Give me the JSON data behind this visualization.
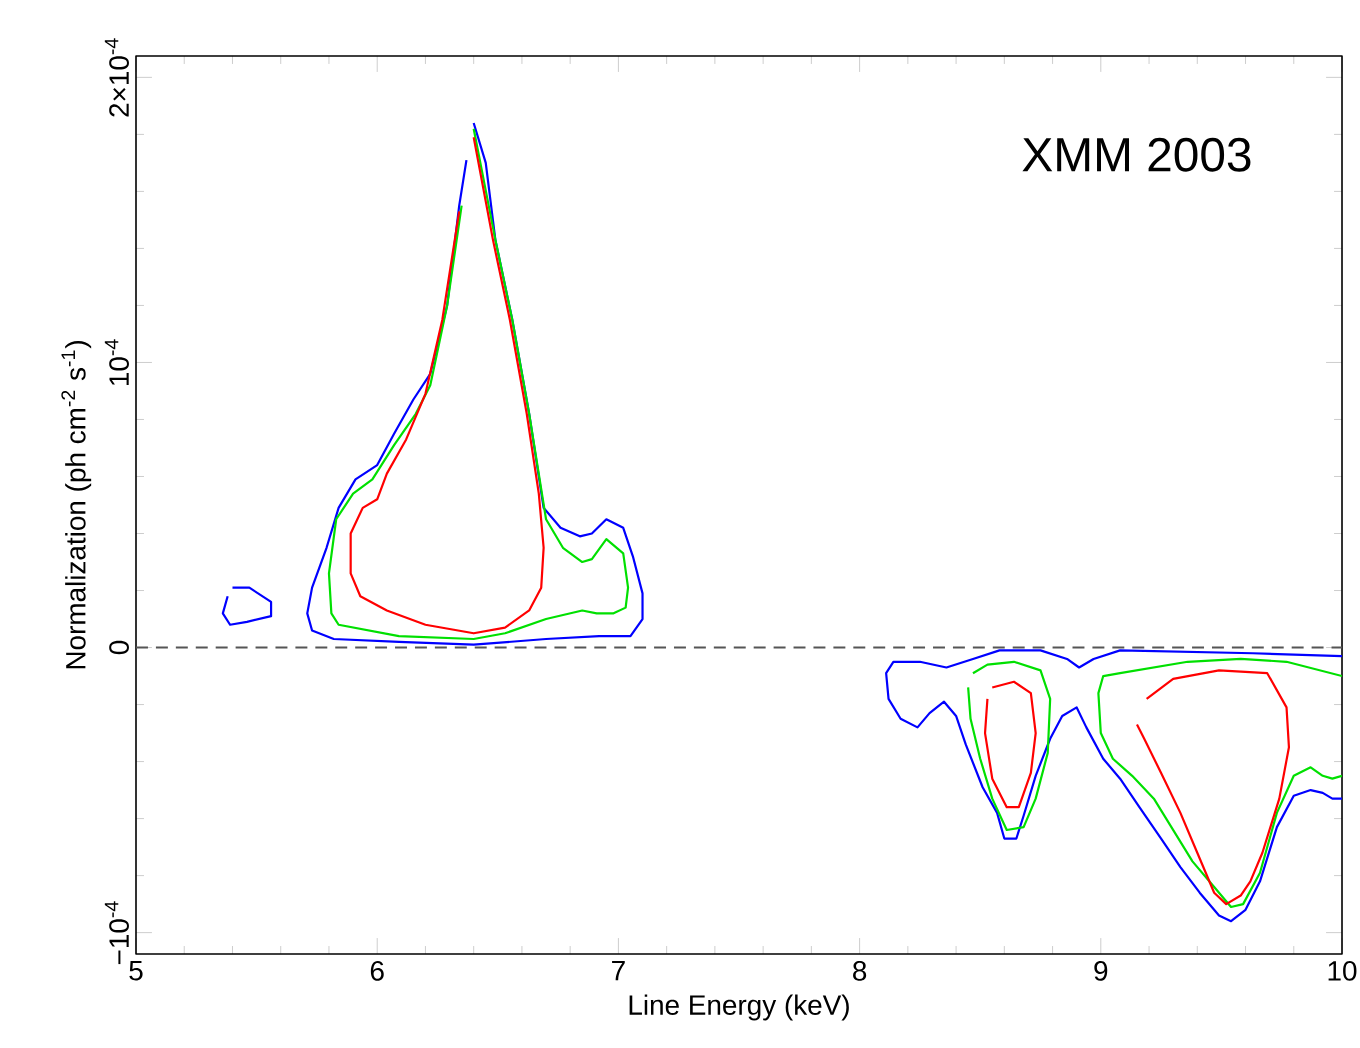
{
  "chart_data": {
    "type": "line",
    "xlabel": "Line Energy (keV)",
    "ylabel": "Normalization (ph cm$^{-2}$ s$^{-1}$)",
    "annotations": [
      "XMM 2003"
    ],
    "xlim": [
      5,
      10
    ],
    "xticks": [
      5,
      6,
      7,
      8,
      9,
      10
    ],
    "ylim": [
      -0.0001075,
      0.0002075
    ],
    "yticks": [
      {
        "value": -0.0001,
        "label": "−10$^{-4}$"
      },
      0,
      {
        "value": 0.0001,
        "label": "10$^{-4}$"
      },
      {
        "value": 0.0002,
        "label": "2×10$^{-4}$"
      }
    ],
    "marker": "none",
    "line_style": "solid",
    "ref_lines": [
      {
        "axis": "y",
        "value": 0,
        "color": "#555555",
        "line_style": "dashed"
      }
    ],
    "series": [
      {
        "color": "#0000ff",
        "x": [
          6.37,
          6.34,
          6.29,
          6.22,
          6.15,
          6.07,
          6.0,
          5.91,
          5.84,
          5.79,
          5.73,
          5.71,
          5.73,
          5.82,
          6.09,
          6.4,
          6.7,
          6.92,
          7.05,
          7.1,
          7.1,
          7.06,
          7.02,
          6.95,
          6.89,
          6.84,
          6.76,
          6.69,
          6.63,
          6.56,
          6.49,
          6.45,
          6.4
        ],
        "values": [
          0.000171,
          0.000155,
          0.00012,
          9.6e-05,
          8.7e-05,
          7.5e-05,
          6.4e-05,
          5.9e-05,
          4.9e-05,
          3.5e-05,
          2.1e-05,
          1.2e-05,
          6e-06,
          3e-06,
          2e-06,
          1e-06,
          3e-06,
          4e-06,
          4e-06,
          1e-05,
          1.9e-05,
          3.2e-05,
          4.2e-05,
          4.5e-05,
          4e-05,
          3.9e-05,
          4.2e-05,
          4.9e-05,
          8.2e-05,
          0.000115,
          0.000143,
          0.00017,
          0.000184
        ]
      },
      {
        "color": "#00e000",
        "x": [
          6.35,
          6.29,
          6.22,
          6.16,
          6.07,
          5.98,
          5.9,
          5.83,
          5.8,
          5.81,
          5.84,
          6.09,
          6.4,
          6.53,
          6.7,
          6.85,
          6.91,
          6.98,
          7.03,
          7.04,
          7.02,
          6.95,
          6.89,
          6.85,
          6.77,
          6.7,
          6.63,
          6.56,
          6.49,
          6.4
        ],
        "values": [
          0.000155,
          0.00012,
          9.2e-05,
          8.2e-05,
          7.1e-05,
          5.9e-05,
          5.4e-05,
          4.5e-05,
          2.6e-05,
          1.2e-05,
          8e-06,
          4e-06,
          3e-06,
          5e-06,
          1e-05,
          1.3e-05,
          1.2e-05,
          1.2e-05,
          1.4e-05,
          2.1e-05,
          3.3e-05,
          3.8e-05,
          3.1e-05,
          3e-05,
          3.5e-05,
          4.5e-05,
          8.2e-05,
          0.000115,
          0.000143,
          0.000182
        ]
      },
      {
        "color": "#ff0000",
        "x": [
          6.34,
          6.27,
          6.2,
          6.12,
          6.04,
          6.0,
          5.94,
          5.89,
          5.89,
          5.93,
          6.04,
          6.2,
          6.4,
          6.53,
          6.63,
          6.68,
          6.69,
          6.67,
          6.62,
          6.55,
          6.48,
          6.4
        ],
        "values": [
          0.000153,
          0.000115,
          8.9e-05,
          7.3e-05,
          6.1e-05,
          5.2e-05,
          4.9e-05,
          4e-05,
          2.6e-05,
          1.8e-05,
          1.3e-05,
          8e-06,
          5e-06,
          7e-06,
          1.3e-05,
          2.1e-05,
          3.5e-05,
          5.4e-05,
          8.2e-05,
          0.000115,
          0.000143,
          0.000179
        ]
      },
      {
        "color": "#0000ff",
        "x": [
          5.38,
          5.36,
          5.39,
          5.46,
          5.56,
          5.56,
          5.47,
          5.4
        ],
        "values": [
          1.8e-05,
          1.2e-05,
          8e-06,
          9e-06,
          1.1e-05,
          1.6e-05,
          2.1e-05,
          2.1e-05
        ]
      },
      {
        "color": "#0000ff",
        "x": [
          10.0,
          9.63,
          9.08,
          8.97,
          8.91,
          8.86,
          8.75,
          8.58,
          8.47,
          8.36,
          8.25,
          8.14,
          8.11,
          8.12,
          8.17,
          8.24,
          8.29,
          8.35,
          8.4,
          8.44,
          8.51,
          8.57,
          8.6,
          8.65,
          8.68,
          8.73,
          8.79,
          8.84,
          8.9,
          8.94,
          9.01,
          9.08,
          9.16,
          9.25,
          9.33,
          9.41,
          9.49,
          9.54,
          9.6,
          9.66,
          9.73,
          9.8,
          9.87,
          9.92,
          9.96,
          10.0
        ],
        "values": [
          -3e-06,
          -2e-06,
          -1e-06,
          -4e-06,
          -7e-06,
          -4e-06,
          -1e-06,
          -1e-06,
          -4e-06,
          -7e-06,
          -5e-06,
          -5e-06,
          -9e-06,
          -1.8e-05,
          -2.5e-05,
          -2.8e-05,
          -2.3e-05,
          -1.9e-05,
          -2.4e-05,
          -3.4e-05,
          -4.9e-05,
          -5.8e-05,
          -6.7e-05,
          -6.7e-05,
          -5.9e-05,
          -4.5e-05,
          -3.2e-05,
          -2.4e-05,
          -2.1e-05,
          -2.8e-05,
          -3.9e-05,
          -4.6e-05,
          -5.6e-05,
          -6.7e-05,
          -7.7e-05,
          -8.6e-05,
          -9.4e-05,
          -9.6e-05,
          -9.2e-05,
          -8.2e-05,
          -6.3e-05,
          -5.2e-05,
          -5e-05,
          -5.1e-05,
          -5.3e-05,
          -5.3e-05
        ]
      },
      {
        "color": "#00e000",
        "x": [
          8.45,
          8.46,
          8.5,
          8.55,
          8.61,
          8.68,
          8.73,
          8.78,
          8.79,
          8.75,
          8.64,
          8.53,
          8.47
        ],
        "values": [
          -1.4e-05,
          -2.5e-05,
          -3.9e-05,
          -5.3e-05,
          -6.4e-05,
          -6.3e-05,
          -5.3e-05,
          -3.7e-05,
          -1.8e-05,
          -8e-06,
          -5e-06,
          -6e-06,
          -9e-06
        ]
      },
      {
        "color": "#00e000",
        "x": [
          10.0,
          9.77,
          9.58,
          9.36,
          9.08,
          9.01,
          8.99,
          9.0,
          9.05,
          9.13,
          9.22,
          9.3,
          9.38,
          9.47,
          9.54,
          9.59,
          9.66,
          9.73,
          9.8,
          9.87,
          9.92,
          9.96,
          10.0
        ],
        "values": [
          -1e-05,
          -5e-06,
          -4e-06,
          -5e-06,
          -9e-06,
          -1e-05,
          -1.6e-05,
          -3e-05,
          -3.9e-05,
          -4.5e-05,
          -5.3e-05,
          -6.4e-05,
          -7.5e-05,
          -8.4e-05,
          -9.1e-05,
          -9e-05,
          -7.9e-05,
          -5.8e-05,
          -4.5e-05,
          -4.2e-05,
          -4.5e-05,
          -4.6e-05,
          -4.5e-05
        ]
      },
      {
        "color": "#ff0000",
        "x": [
          8.53,
          8.52,
          8.55,
          8.61,
          8.66,
          8.71,
          8.73,
          8.71,
          8.64,
          8.55
        ],
        "values": [
          -1.8e-05,
          -3e-05,
          -4.6e-05,
          -5.6e-05,
          -5.6e-05,
          -4.4e-05,
          -3e-05,
          -1.6e-05,
          -1.2e-05,
          -1.4e-05
        ]
      },
      {
        "color": "#ff0000",
        "x": [
          9.15,
          9.18,
          9.25,
          9.33,
          9.4,
          9.47,
          9.52,
          9.58,
          9.62,
          9.67,
          9.74,
          9.78,
          9.77,
          9.69,
          9.49,
          9.3,
          9.19
        ],
        "values": [
          -2.7e-05,
          -3.2e-05,
          -4.4e-05,
          -5.8e-05,
          -7.2e-05,
          -8.6e-05,
          -9e-05,
          -8.7e-05,
          -8.2e-05,
          -7.2e-05,
          -5.3e-05,
          -3.5e-05,
          -2.1e-05,
          -9e-06,
          -8e-06,
          -1.1e-05,
          -1.8e-05
        ]
      }
    ]
  }
}
